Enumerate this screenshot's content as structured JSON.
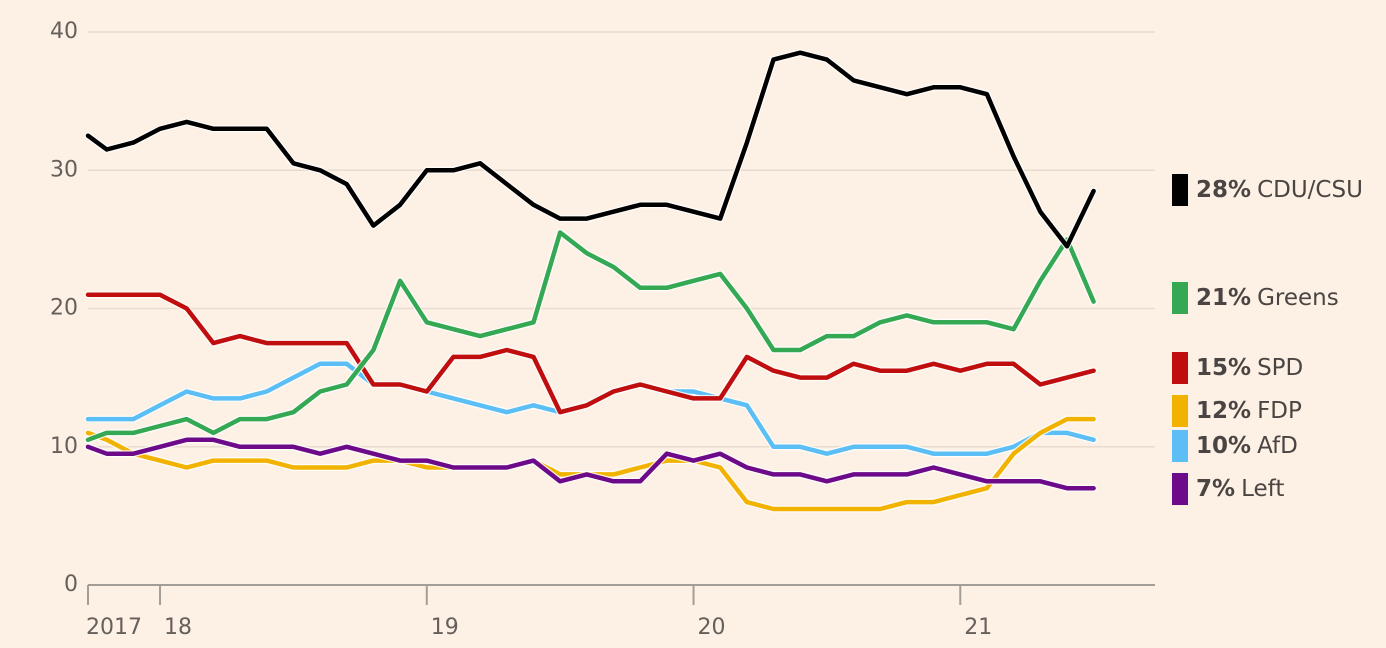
{
  "chart_data": {
    "type": "line",
    "x": [
      2017.73,
      2017.8,
      2017.9,
      2018.0,
      2018.1,
      2018.2,
      2018.3,
      2018.4,
      2018.5,
      2018.6,
      2018.7,
      2018.8,
      2018.9,
      2019.0,
      2019.1,
      2019.2,
      2019.3,
      2019.4,
      2019.5,
      2019.6,
      2019.7,
      2019.8,
      2019.9,
      2020.0,
      2020.1,
      2020.2,
      2020.3,
      2020.4,
      2020.5,
      2020.6,
      2020.7,
      2020.8,
      2020.9,
      2021.0,
      2021.1,
      2021.2,
      2021.3,
      2021.4,
      2021.5
    ],
    "series": [
      {
        "name": "CDU/CSU",
        "legend_label": "28%",
        "color": "#000000",
        "values": [
          32.5,
          31.5,
          32,
          33,
          33.5,
          33,
          33,
          33,
          30.5,
          30,
          29,
          26,
          27.5,
          30,
          30,
          30.5,
          29,
          27.5,
          26.5,
          26.5,
          27,
          27.5,
          27.5,
          27,
          26.5,
          32,
          38,
          38.5,
          38,
          36.5,
          36,
          35.5,
          36,
          36,
          35.5,
          31,
          27,
          24.5,
          28.5
        ]
      },
      {
        "name": "Greens",
        "legend_label": "21%",
        "color": "#34a853",
        "values": [
          10.5,
          11,
          11,
          11.5,
          12,
          11,
          12,
          12,
          12.5,
          14,
          14.5,
          17,
          22,
          19,
          18.5,
          18,
          18.5,
          19,
          25.5,
          24,
          23,
          21.5,
          21.5,
          22,
          22.5,
          20,
          17,
          17,
          18,
          18,
          19,
          19.5,
          19,
          19,
          19,
          18.5,
          22,
          25,
          20.5
        ]
      },
      {
        "name": "SPD",
        "legend_label": "15%",
        "color": "#c00d0d",
        "values": [
          21,
          21,
          21,
          21,
          20,
          17.5,
          18,
          17.5,
          17.5,
          17.5,
          17.5,
          14.5,
          14.5,
          14,
          16.5,
          16.5,
          17,
          16.5,
          12.5,
          13,
          14,
          14.5,
          14,
          13.5,
          13.5,
          16.5,
          15.5,
          15,
          15,
          16,
          15.5,
          15.5,
          16,
          15.5,
          16,
          16,
          14.5,
          15,
          15.5
        ]
      },
      {
        "name": "FDP",
        "legend_label": "12%",
        "color": "#f2b300",
        "values": [
          11,
          10.5,
          9.5,
          9,
          8.5,
          9,
          9,
          9,
          8.5,
          8.5,
          8.5,
          9,
          9,
          8.5,
          8.5,
          8.5,
          8.5,
          9,
          8,
          8,
          8,
          8.5,
          9,
          9,
          8.5,
          6,
          5.5,
          5.5,
          5.5,
          5.5,
          5.5,
          6,
          6,
          6.5,
          7,
          9.5,
          11,
          12,
          12
        ]
      },
      {
        "name": "AfD",
        "legend_label": "10%",
        "color": "#5bbff5",
        "values": [
          12,
          12,
          12,
          13,
          14,
          13.5,
          13.5,
          14,
          15,
          16,
          16,
          14.5,
          14.5,
          14,
          13.5,
          13,
          12.5,
          13,
          12.5,
          13,
          14,
          14.5,
          14,
          14,
          13.5,
          13,
          10,
          10,
          9.5,
          10,
          10,
          10,
          9.5,
          9.5,
          9.5,
          10,
          11,
          11,
          10.5
        ]
      },
      {
        "name": "Left",
        "legend_label": "7%",
        "color": "#6d0a8a",
        "values": [
          10,
          9.5,
          9.5,
          10,
          10.5,
          10.5,
          10,
          10,
          10,
          9.5,
          10,
          9.5,
          9,
          9,
          8.5,
          8.5,
          8.5,
          9,
          7.5,
          8,
          7.5,
          7.5,
          9.5,
          9,
          9.5,
          8.5,
          8,
          8,
          7.5,
          8,
          8,
          8,
          8.5,
          8,
          7.5,
          7.5,
          7.5,
          7,
          7
        ]
      }
    ],
    "xlim": [
      2017.73,
      2021.73
    ],
    "xticks": [
      {
        "value": 2017.73,
        "label": "2017"
      },
      {
        "value": 2018,
        "label": "18"
      },
      {
        "value": 2019,
        "label": "19"
      },
      {
        "value": 2020,
        "label": "20"
      },
      {
        "value": 2021,
        "label": "21"
      }
    ],
    "ylim": [
      0,
      40
    ],
    "yticks": [
      0,
      10,
      20,
      30,
      40
    ],
    "grid": true
  }
}
